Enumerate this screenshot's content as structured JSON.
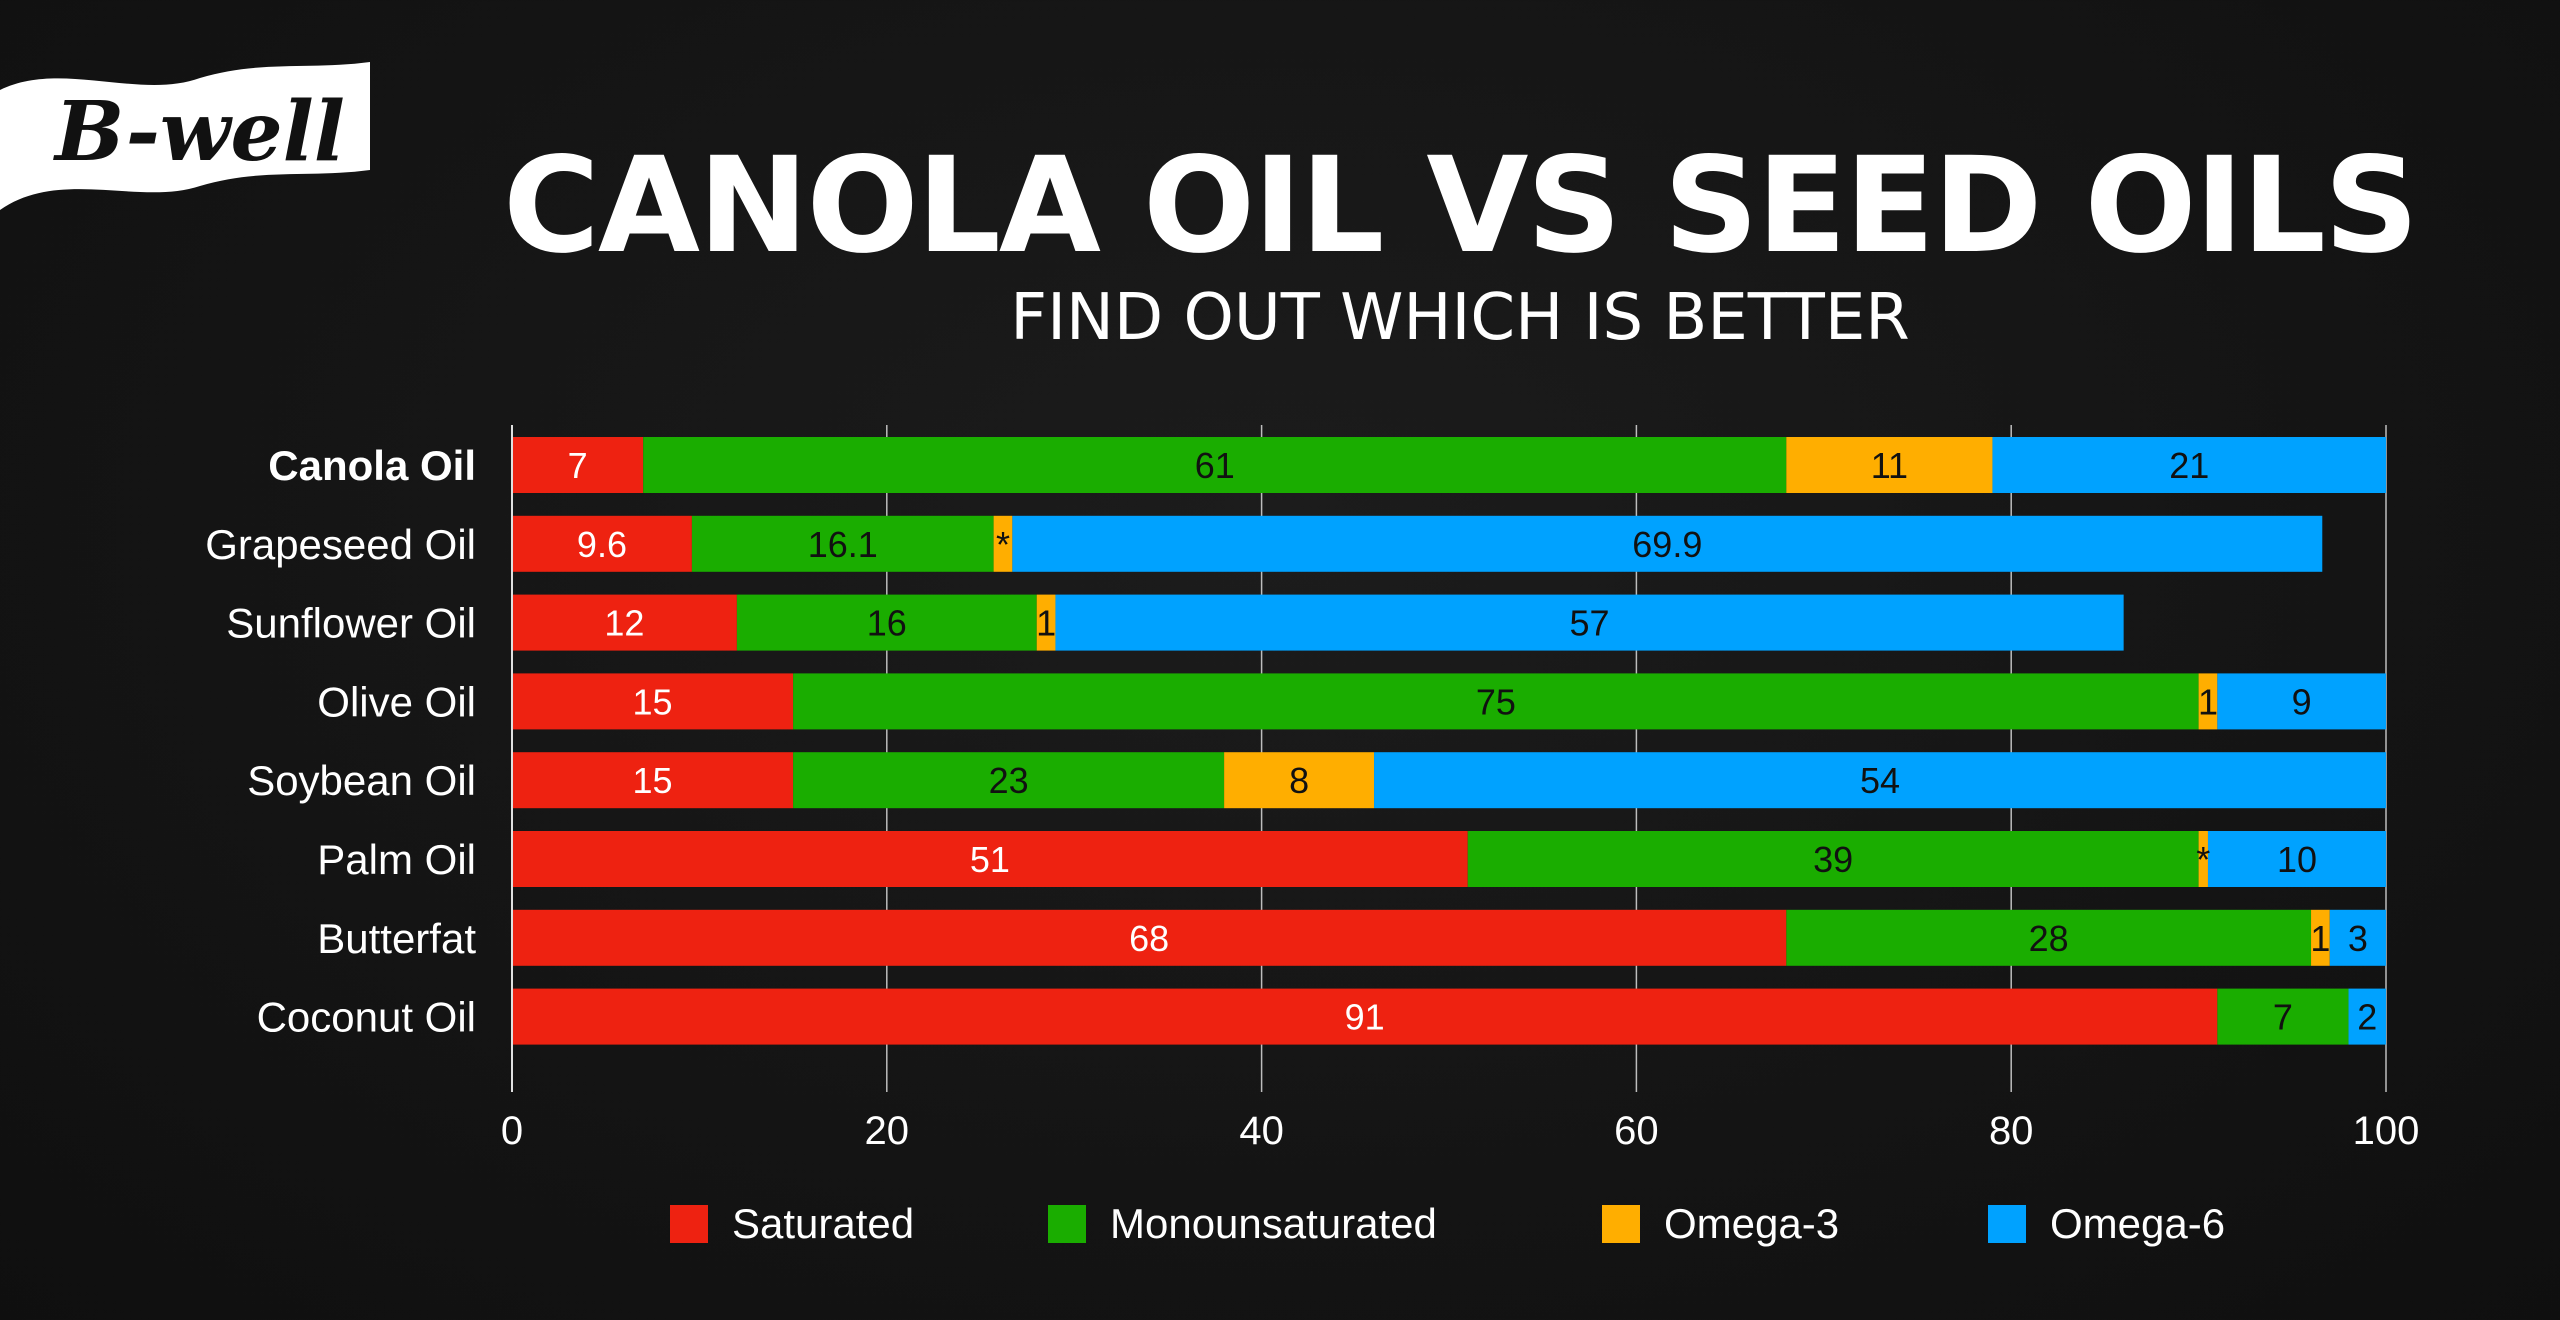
{
  "logo": {
    "text": "B-well"
  },
  "header": {
    "title": "CANOLA OIL VS SEED OILS",
    "subtitle": "FIND OUT WHICH IS BETTER"
  },
  "colors": {
    "Saturated": "#ee2211",
    "Monounsaturated": "#1aad00",
    "Omega-3": "#ffae00",
    "Omega-6": "#00a2ff",
    "background": "#141414"
  },
  "chart_data": {
    "type": "bar",
    "orientation": "horizontal",
    "stacked": true,
    "categories": [
      "Canola Oil",
      "Grapeseed Oil",
      "Sunflower Oil",
      "Olive Oil",
      "Soybean Oil",
      "Palm Oil",
      "Butterfat",
      "Coconut Oil"
    ],
    "highlighted_category": "Canola Oil",
    "series": [
      {
        "name": "Saturated",
        "values": [
          7,
          9.6,
          12,
          15,
          15,
          51,
          68,
          91
        ],
        "labels": [
          "7",
          "9.6",
          "12",
          "15",
          "15",
          "51",
          "68",
          "91"
        ]
      },
      {
        "name": "Monounsaturated",
        "values": [
          61,
          16.1,
          16,
          75,
          23,
          39,
          28,
          7
        ],
        "labels": [
          "61",
          "16.1",
          "16",
          "75",
          "23",
          "39",
          "28",
          "7"
        ]
      },
      {
        "name": "Omega-3",
        "values": [
          11,
          1,
          1,
          1,
          8,
          0.5,
          1,
          0
        ],
        "labels": [
          "11",
          "*",
          "1",
          "1",
          "8",
          "*",
          "1",
          ""
        ]
      },
      {
        "name": "Omega-6",
        "values": [
          21,
          69.9,
          57,
          9,
          54,
          10,
          3,
          2
        ],
        "labels": [
          "21",
          "69.9",
          "57",
          "9",
          "54",
          "10",
          "3",
          "2"
        ]
      }
    ],
    "xlim": [
      0,
      100
    ],
    "xticks": [
      "0",
      "20",
      "40",
      "60",
      "80",
      "100"
    ],
    "grid": true,
    "legend_position": "bottom"
  }
}
